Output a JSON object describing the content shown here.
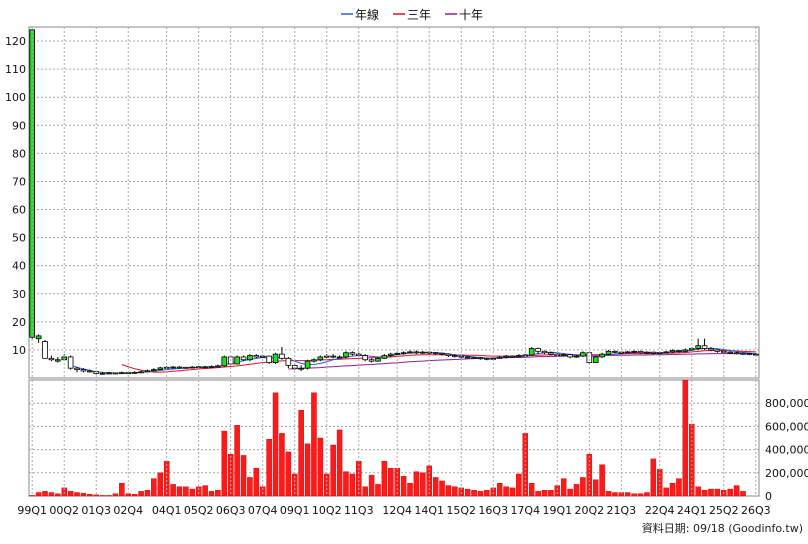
{
  "chart_data": [
    {
      "type": "candlestick",
      "legend": [
        {
          "label": "年線",
          "color": "#2b5fd9"
        },
        {
          "label": "三年",
          "color": "#e0112b"
        },
        {
          "label": "十年",
          "color": "#8a1f8f"
        }
      ],
      "legend_position": "top-center",
      "grid": true,
      "ylim": [
        0,
        125
      ],
      "yticks": [
        10,
        20,
        30,
        40,
        50,
        60,
        70,
        80,
        90,
        100,
        110,
        120
      ],
      "x_tick_labels": [
        "99Q1",
        "00Q2",
        "01Q3",
        "02Q4",
        "04Q1",
        "05Q2",
        "06Q3",
        "07Q4",
        "09Q1",
        "10Q2",
        "11Q3",
        "12Q4",
        "14Q1",
        "15Q2",
        "16Q3",
        "17Q4",
        "19Q1",
        "20Q2",
        "21Q3",
        "22Q4",
        "24Q1",
        "25Q2",
        "26Q3"
      ],
      "candles": [
        [
          14.5,
          124.0,
          124.0,
          14.0
        ],
        [
          14.0,
          15.0,
          15.5,
          12.5
        ],
        [
          13.0,
          7.0,
          13.5,
          7.0
        ],
        [
          7.0,
          6.5,
          8.0,
          6.0
        ],
        [
          6.0,
          6.5,
          7.5,
          5.5
        ],
        [
          6.5,
          7.5,
          8.5,
          6.5
        ],
        [
          7.5,
          3.5,
          8.0,
          3.0
        ],
        [
          3.5,
          3.0,
          4.0,
          2.0
        ],
        [
          3.0,
          2.5,
          3.5,
          2.0
        ],
        [
          2.5,
          2.3,
          3.0,
          2.0
        ],
        [
          2.3,
          1.6,
          2.6,
          1.3
        ],
        [
          1.5,
          1.7,
          2.2,
          1.2
        ],
        [
          1.7,
          1.8,
          2.2,
          1.5
        ],
        [
          1.8,
          1.7,
          2.0,
          1.4
        ],
        [
          1.7,
          1.9,
          2.3,
          1.5
        ],
        [
          1.9,
          1.8,
          2.2,
          1.5
        ],
        [
          1.8,
          2.0,
          2.4,
          1.6
        ],
        [
          2.0,
          2.2,
          2.6,
          1.8
        ],
        [
          2.2,
          2.6,
          3.0,
          2.0
        ],
        [
          2.6,
          3.0,
          3.5,
          2.3
        ],
        [
          3.0,
          3.6,
          4.0,
          2.8
        ],
        [
          3.6,
          3.8,
          4.2,
          3.4
        ],
        [
          3.8,
          3.9,
          4.3,
          3.5
        ],
        [
          3.9,
          3.8,
          4.2,
          3.6
        ],
        [
          3.8,
          3.7,
          4.0,
          3.5
        ],
        [
          3.7,
          3.9,
          4.2,
          3.5
        ],
        [
          3.9,
          4.0,
          4.3,
          3.6
        ],
        [
          4.0,
          4.0,
          4.3,
          3.7
        ],
        [
          4.0,
          4.1,
          4.5,
          3.8
        ],
        [
          4.1,
          4.3,
          4.8,
          4.0
        ],
        [
          4.3,
          7.5,
          8.0,
          4.0
        ],
        [
          7.5,
          5.0,
          8.0,
          4.5
        ],
        [
          5.0,
          7.5,
          8.0,
          4.8
        ],
        [
          7.5,
          6.5,
          8.0,
          6.0
        ],
        [
          6.5,
          8.0,
          8.5,
          6.0
        ],
        [
          8.0,
          7.5,
          8.5,
          7.0
        ],
        [
          7.5,
          7.8,
          8.3,
          7.2
        ],
        [
          7.8,
          5.5,
          8.0,
          5.0
        ],
        [
          5.5,
          8.5,
          9.0,
          5.0
        ],
        [
          8.5,
          7.0,
          11.0,
          6.5
        ],
        [
          7.0,
          4.5,
          7.5,
          3.5
        ],
        [
          4.5,
          3.5,
          5.0,
          3.0
        ],
        [
          3.5,
          3.5,
          4.5,
          2.5
        ],
        [
          3.5,
          6.0,
          6.5,
          3.0
        ],
        [
          6.0,
          6.5,
          7.0,
          5.5
        ],
        [
          6.5,
          7.5,
          8.0,
          6.0
        ],
        [
          7.5,
          7.8,
          8.5,
          7.0
        ],
        [
          7.8,
          7.5,
          8.5,
          7.0
        ],
        [
          7.5,
          7.5,
          8.0,
          7.0
        ],
        [
          7.5,
          9.0,
          9.5,
          7.0
        ],
        [
          9.0,
          8.5,
          9.5,
          8.0
        ],
        [
          8.5,
          8.0,
          9.0,
          7.5
        ],
        [
          8.0,
          6.5,
          8.5,
          6.0
        ],
        [
          6.5,
          6.0,
          7.0,
          5.5
        ],
        [
          6.0,
          7.0,
          7.5,
          5.8
        ],
        [
          7.0,
          8.0,
          8.5,
          6.8
        ],
        [
          8.0,
          8.5,
          9.0,
          7.5
        ],
        [
          8.5,
          8.8,
          9.5,
          8.0
        ],
        [
          8.8,
          9.0,
          9.5,
          8.3
        ],
        [
          9.0,
          9.3,
          9.8,
          8.7
        ],
        [
          9.3,
          9.0,
          9.8,
          8.5
        ],
        [
          9.0,
          9.2,
          9.6,
          8.6
        ],
        [
          9.2,
          9.0,
          9.5,
          8.5
        ],
        [
          9.0,
          8.8,
          9.3,
          8.3
        ],
        [
          8.8,
          8.5,
          9.0,
          8.0
        ],
        [
          8.5,
          8.0,
          8.8,
          7.5
        ],
        [
          8.0,
          7.8,
          8.5,
          7.3
        ],
        [
          7.8,
          7.5,
          8.0,
          7.0
        ],
        [
          7.5,
          7.3,
          7.8,
          6.8
        ],
        [
          7.3,
          7.2,
          7.6,
          6.8
        ],
        [
          7.2,
          7.0,
          7.5,
          6.5
        ],
        [
          7.0,
          6.8,
          7.3,
          6.3
        ],
        [
          6.8,
          7.0,
          7.3,
          6.5
        ],
        [
          7.0,
          7.4,
          7.8,
          6.8
        ],
        [
          7.4,
          7.8,
          8.2,
          7.0
        ],
        [
          7.8,
          7.6,
          8.0,
          7.2
        ],
        [
          7.6,
          8.0,
          8.5,
          7.3
        ],
        [
          8.0,
          8.2,
          8.6,
          7.8
        ],
        [
          8.2,
          10.5,
          11.0,
          8.0
        ],
        [
          10.5,
          9.5,
          10.8,
          8.5
        ],
        [
          9.5,
          9.0,
          9.8,
          8.5
        ],
        [
          9.0,
          8.5,
          9.3,
          8.0
        ],
        [
          8.5,
          8.0,
          8.8,
          7.5
        ],
        [
          8.0,
          8.3,
          8.7,
          7.8
        ],
        [
          8.3,
          7.5,
          8.6,
          7.0
        ],
        [
          7.5,
          7.8,
          8.2,
          7.2
        ],
        [
          7.8,
          9.0,
          9.5,
          7.5
        ],
        [
          9.0,
          5.5,
          9.3,
          5.0
        ],
        [
          5.5,
          7.5,
          8.0,
          5.3
        ],
        [
          7.5,
          8.5,
          9.0,
          7.2
        ],
        [
          8.5,
          9.5,
          10.0,
          8.2
        ],
        [
          9.5,
          9.2,
          9.8,
          8.8
        ],
        [
          9.2,
          9.0,
          9.5,
          8.5
        ],
        [
          9.0,
          9.3,
          9.6,
          8.7
        ],
        [
          9.3,
          9.5,
          9.8,
          9.0
        ],
        [
          9.5,
          9.0,
          9.8,
          8.7
        ],
        [
          9.0,
          9.2,
          9.5,
          8.6
        ],
        [
          9.2,
          8.8,
          9.4,
          8.4
        ],
        [
          8.8,
          9.0,
          9.3,
          8.5
        ],
        [
          9.0,
          9.3,
          9.6,
          8.7
        ],
        [
          9.3,
          9.8,
          10.2,
          9.0
        ],
        [
          9.8,
          9.5,
          10.0,
          9.0
        ],
        [
          9.5,
          10.0,
          10.5,
          9.2
        ],
        [
          10.0,
          10.5,
          11.0,
          9.7
        ],
        [
          10.5,
          11.5,
          14.0,
          10.0
        ],
        [
          11.5,
          10.5,
          14.0,
          10.0
        ],
        [
          10.5,
          10.0,
          11.0,
          9.5
        ],
        [
          10.0,
          9.5,
          10.3,
          9.0
        ],
        [
          9.5,
          9.2,
          9.8,
          8.8
        ],
        [
          9.2,
          9.0,
          9.5,
          8.6
        ],
        [
          9.0,
          8.8,
          9.3,
          8.4
        ],
        [
          8.8,
          8.7,
          9.1,
          8.3
        ],
        [
          8.7,
          8.5,
          9.0,
          8.1
        ],
        [
          8.5,
          8.2,
          8.8,
          7.9
        ]
      ],
      "ma_year": [
        null,
        null,
        null,
        null,
        null,
        null,
        4.6,
        3.8,
        3.2,
        2.7,
        2.2,
        2.0,
        1.9,
        1.8,
        1.8,
        1.8,
        1.9,
        2.0,
        2.2,
        2.4,
        2.7,
        3.0,
        3.2,
        3.4,
        3.6,
        3.7,
        3.8,
        3.9,
        3.9,
        4.0,
        4.8,
        5.2,
        5.6,
        6.2,
        6.6,
        7.0,
        7.3,
        7.1,
        7.2,
        7.3,
        6.8,
        6.0,
        5.2,
        4.7,
        4.8,
        5.2,
        5.8,
        6.5,
        7.0,
        7.4,
        7.8,
        8.0,
        8.0,
        7.7,
        7.5,
        7.6,
        7.9,
        8.3,
        8.6,
        8.9,
        9.0,
        9.1,
        9.1,
        9.0,
        8.9,
        8.6,
        8.3,
        8.0,
        7.8,
        7.5,
        7.3,
        7.1,
        7.0,
        7.1,
        7.3,
        7.5,
        7.6,
        7.8,
        8.3,
        8.7,
        9.0,
        9.2,
        9.0,
        8.7,
        8.4,
        8.2,
        8.3,
        7.9,
        7.7,
        7.8,
        8.1,
        8.5,
        8.9,
        9.0,
        9.1,
        9.2,
        9.1,
        9.1,
        9.0,
        9.1,
        9.3,
        9.4,
        9.6,
        9.9,
        10.3,
        10.6,
        10.6,
        10.4,
        10.1,
        9.8,
        9.4,
        9.1,
        8.9,
        8.7
      ],
      "ma_3y": [
        null,
        null,
        null,
        null,
        null,
        null,
        null,
        null,
        null,
        null,
        null,
        null,
        null,
        null,
        4.8,
        4.0,
        3.3,
        2.8,
        2.4,
        2.1,
        2.1,
        2.2,
        2.4,
        2.6,
        2.8,
        3.0,
        3.2,
        3.4,
        3.5,
        3.7,
        3.9,
        4.1,
        4.3,
        4.6,
        4.9,
        5.2,
        5.5,
        5.7,
        5.9,
        6.1,
        6.2,
        6.2,
        6.2,
        6.2,
        6.3,
        6.4,
        6.5,
        6.6,
        6.7,
        6.8,
        6.9,
        7.0,
        7.1,
        7.2,
        7.3,
        7.4,
        7.5,
        7.7,
        7.9,
        8.1,
        8.2,
        8.3,
        8.3,
        8.3,
        8.3,
        8.2,
        8.2,
        8.2,
        8.1,
        8.1,
        8.0,
        7.9,
        7.8,
        7.8,
        7.8,
        7.8,
        7.8,
        7.9,
        8.0,
        8.1,
        8.2,
        8.3,
        8.3,
        8.3,
        8.3,
        8.3,
        8.3,
        8.3,
        8.3,
        8.3,
        8.4,
        8.5,
        8.6,
        8.7,
        8.7,
        8.7,
        8.7,
        8.7,
        8.8,
        8.8,
        8.9,
        9.0,
        9.1,
        9.3,
        9.5,
        9.7,
        9.8,
        9.8,
        9.8,
        9.7,
        9.6,
        9.5,
        9.4,
        9.3
      ],
      "ma_10y": [
        null,
        null,
        null,
        null,
        null,
        null,
        null,
        null,
        null,
        null,
        null,
        null,
        null,
        null,
        null,
        null,
        null,
        null,
        null,
        null,
        null,
        null,
        null,
        null,
        null,
        null,
        null,
        null,
        null,
        null,
        null,
        null,
        null,
        null,
        null,
        null,
        null,
        null,
        null,
        null,
        3.2,
        3.3,
        3.4,
        3.5,
        3.6,
        3.7,
        3.9,
        4.0,
        4.2,
        4.3,
        4.4,
        4.6,
        4.7,
        4.8,
        5.0,
        5.1,
        5.3,
        5.4,
        5.6,
        5.8,
        5.9,
        6.0,
        6.2,
        6.3,
        6.4,
        6.5,
        6.6,
        6.7,
        6.8,
        6.9,
        7.0,
        7.0,
        7.1,
        7.2,
        7.2,
        7.3,
        7.3,
        7.4,
        7.5,
        7.6,
        7.6,
        7.7,
        7.7,
        7.8,
        7.8,
        7.8,
        7.9,
        7.9,
        7.9,
        8.0,
        8.0,
        8.1,
        8.1,
        8.1,
        8.2,
        8.2,
        8.2,
        8.3,
        8.3,
        8.3,
        8.4,
        8.4,
        8.5,
        8.5,
        8.6,
        8.6,
        8.7,
        8.7,
        8.7,
        8.7,
        8.7,
        8.7,
        8.7,
        8.7
      ]
    },
    {
      "type": "bar",
      "ylim": [
        0,
        1000000
      ],
      "yticks": [
        0,
        200000,
        400000,
        600000,
        800000
      ],
      "ytick_labels": [
        "0",
        "200,000",
        "400,000",
        "600,000",
        "800,000"
      ],
      "values": [
        5000,
        30000,
        40000,
        30000,
        20000,
        70000,
        40000,
        30000,
        25000,
        15000,
        10000,
        5000,
        5000,
        20000,
        110000,
        20000,
        15000,
        40000,
        50000,
        150000,
        200000,
        300000,
        100000,
        80000,
        80000,
        60000,
        80000,
        90000,
        40000,
        50000,
        560000,
        360000,
        610000,
        350000,
        160000,
        240000,
        80000,
        490000,
        890000,
        540000,
        380000,
        190000,
        740000,
        450000,
        890000,
        500000,
        190000,
        440000,
        570000,
        210000,
        190000,
        300000,
        80000,
        180000,
        100000,
        300000,
        240000,
        240000,
        170000,
        110000,
        210000,
        200000,
        260000,
        160000,
        130000,
        90000,
        80000,
        70000,
        60000,
        50000,
        40000,
        50000,
        70000,
        110000,
        80000,
        70000,
        190000,
        540000,
        110000,
        40000,
        50000,
        50000,
        90000,
        150000,
        60000,
        100000,
        160000,
        360000,
        140000,
        270000,
        40000,
        30000,
        30000,
        30000,
        20000,
        20000,
        30000,
        320000,
        230000,
        70000,
        110000,
        150000,
        1000000,
        620000,
        80000,
        50000,
        60000,
        60000,
        50000,
        60000,
        90000,
        40000
      ]
    }
  ],
  "footer": {
    "source_text": "資料日期: 09/18  (Goodinfo.tw)"
  }
}
